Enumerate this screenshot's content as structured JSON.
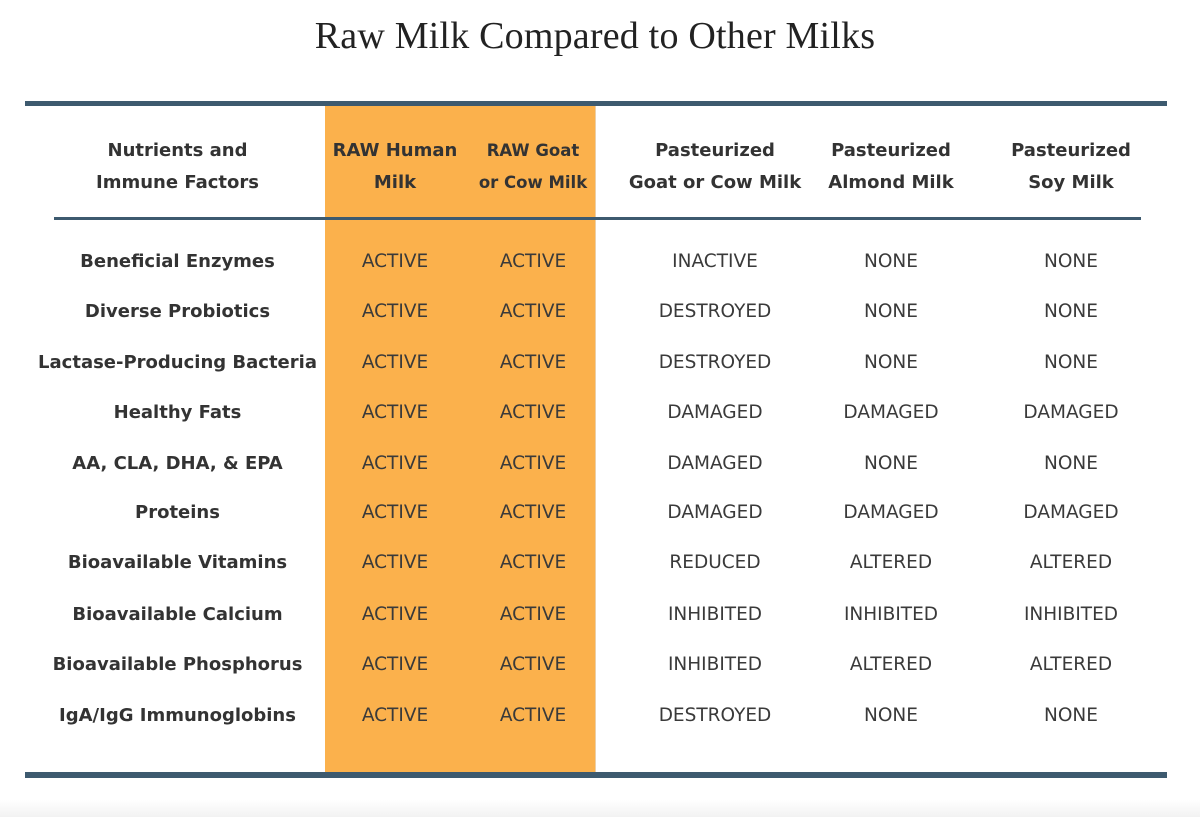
{
  "title": "Raw Milk Compared to Other Milks",
  "table": {
    "headers": [
      "Nutrients and\nImmune Factors",
      "RAW Human\nMilk",
      "RAW Goat\nor Cow Milk",
      "Pasteurized\nGoat or Cow Milk",
      "Pasteurized\nAlmond Milk",
      "Pasteurized\nSoy Milk"
    ],
    "rows": [
      [
        "Beneficial Enzymes",
        "ACTIVE",
        "ACTIVE",
        "INACTIVE",
        "NONE",
        "NONE"
      ],
      [
        "Diverse Probiotics",
        "ACTIVE",
        "ACTIVE",
        "DESTROYED",
        "NONE",
        "NONE"
      ],
      [
        "Lactase-Producing Bacteria",
        "ACTIVE",
        "ACTIVE",
        "DESTROYED",
        "NONE",
        "NONE"
      ],
      [
        "Healthy Fats",
        "ACTIVE",
        "ACTIVE",
        "DAMAGED",
        "DAMAGED",
        "DAMAGED"
      ],
      [
        "AA, CLA, DHA, & EPA",
        "ACTIVE",
        "ACTIVE",
        "DAMAGED",
        "NONE",
        "NONE"
      ],
      [
        "Proteins",
        "ACTIVE",
        "ACTIVE",
        "DAMAGED",
        "DAMAGED",
        "DAMAGED"
      ],
      [
        "Bioavailable Vitamins",
        "ACTIVE",
        "ACTIVE",
        "REDUCED",
        "ALTERED",
        "ALTERED"
      ],
      [
        "Bioavailable Calcium",
        "ACTIVE",
        "ACTIVE",
        "INHIBITED",
        "INHIBITED",
        "INHIBITED"
      ],
      [
        "Bioavailable Phosphorus",
        "ACTIVE",
        "ACTIVE",
        "INHIBITED",
        "ALTERED",
        "ALTERED"
      ],
      [
        "IgA/IgG Immunoglobins",
        "ACTIVE",
        "ACTIVE",
        "DESTROYED",
        "NONE",
        "NONE"
      ]
    ]
  },
  "colors": {
    "highlight": "#fbb14c",
    "rule": "#3d5a6f",
    "text": "#3a3a3a"
  }
}
